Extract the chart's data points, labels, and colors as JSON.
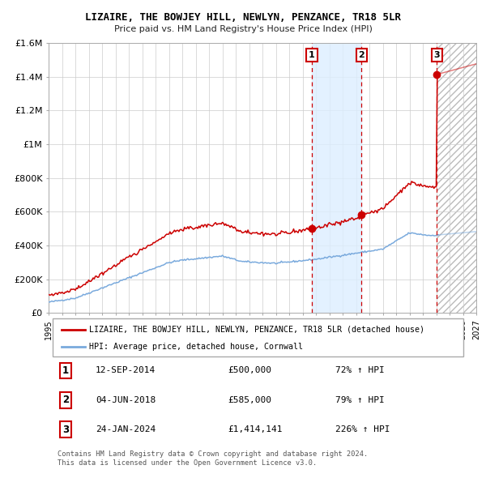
{
  "title": "LIZAIRE, THE BOWJEY HILL, NEWLYN, PENZANCE, TR18 5LR",
  "subtitle": "Price paid vs. HM Land Registry's House Price Index (HPI)",
  "legend_line1": "LIZAIRE, THE BOWJEY HILL, NEWLYN, PENZANCE, TR18 5LR (detached house)",
  "legend_line2": "HPI: Average price, detached house, Cornwall",
  "transactions": [
    {
      "num": 1,
      "date": "12-SEP-2014",
      "price": "£500,000",
      "hpi": "72% ↑ HPI",
      "year": 2014.7
    },
    {
      "num": 2,
      "date": "04-JUN-2018",
      "price": "£585,000",
      "hpi": "79% ↑ HPI",
      "year": 2018.42
    },
    {
      "num": 3,
      "date": "24-JAN-2024",
      "price": "£1,414,141",
      "hpi": "226% ↑ HPI",
      "year": 2024.06
    }
  ],
  "footer1": "Contains HM Land Registry data © Crown copyright and database right 2024.",
  "footer2": "This data is licensed under the Open Government Licence v3.0.",
  "hpi_color": "#7aaadd",
  "price_color": "#cc0000",
  "highlight_color": "#ddeeff",
  "xlim": [
    1995,
    2027
  ],
  "ylim": [
    0,
    1600000
  ],
  "yticks": [
    0,
    200000,
    400000,
    600000,
    800000,
    1000000,
    1200000,
    1400000,
    1600000
  ],
  "ytick_labels": [
    "£0",
    "£200K",
    "£400K",
    "£600K",
    "£800K",
    "£1M",
    "£1.2M",
    "£1.4M",
    "£1.6M"
  ],
  "sale_price_1": 500000,
  "sale_price_2": 585000,
  "sale_price_3": 1414141,
  "sale_year_1": 2014.7,
  "sale_year_2": 2018.42,
  "sale_year_3": 2024.06
}
